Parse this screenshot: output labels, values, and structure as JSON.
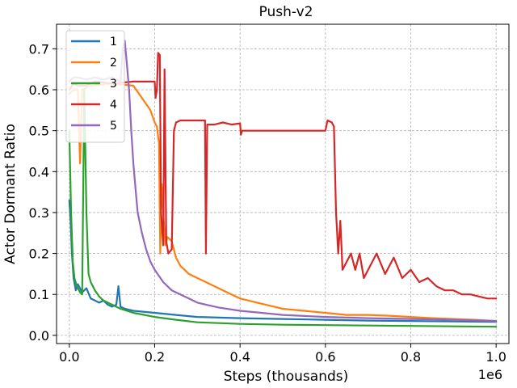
{
  "chart_data": {
    "type": "line",
    "title": "Push-v2",
    "xlabel": "Steps (thousands)",
    "ylabel": "Actor Dormant Ratio",
    "x_offset_label": "1e6",
    "xlim": [
      -0.03,
      1.03
    ],
    "ylim": [
      -0.02,
      0.76
    ],
    "xticks": [
      0.0,
      0.2,
      0.4,
      0.6,
      0.8,
      1.0
    ],
    "xtick_labels": [
      "0.0",
      "0.2",
      "0.4",
      "0.6",
      "0.8",
      "1.0"
    ],
    "yticks": [
      0.0,
      0.1,
      0.2,
      0.3,
      0.4,
      0.5,
      0.6,
      0.7
    ],
    "ytick_labels": [
      "0.0",
      "0.1",
      "0.2",
      "0.3",
      "0.4",
      "0.5",
      "0.6",
      "0.7"
    ],
    "grid": true,
    "legend_position": "top-left",
    "series": [
      {
        "name": "1",
        "color": "#1f77b4",
        "points": [
          [
            0.0,
            0.33
          ],
          [
            0.003,
            0.28
          ],
          [
            0.006,
            0.2
          ],
          [
            0.01,
            0.14
          ],
          [
            0.015,
            0.11
          ],
          [
            0.02,
            0.125
          ],
          [
            0.03,
            0.105
          ],
          [
            0.04,
            0.115
          ],
          [
            0.05,
            0.09
          ],
          [
            0.06,
            0.085
          ],
          [
            0.07,
            0.08
          ],
          [
            0.08,
            0.085
          ],
          [
            0.09,
            0.075
          ],
          [
            0.1,
            0.07
          ],
          [
            0.11,
            0.075
          ],
          [
            0.115,
            0.12
          ],
          [
            0.12,
            0.07
          ],
          [
            0.13,
            0.065
          ],
          [
            0.15,
            0.06
          ],
          [
            0.2,
            0.055
          ],
          [
            0.25,
            0.05
          ],
          [
            0.3,
            0.045
          ],
          [
            0.4,
            0.042
          ],
          [
            0.5,
            0.04
          ],
          [
            0.6,
            0.038
          ],
          [
            0.7,
            0.036
          ],
          [
            0.8,
            0.035
          ],
          [
            0.9,
            0.034
          ],
          [
            1.0,
            0.033
          ]
        ]
      },
      {
        "name": "2",
        "color": "#ff7f0e",
        "points": [
          [
            0.0,
            0.59
          ],
          [
            0.01,
            0.6
          ],
          [
            0.02,
            0.6
          ],
          [
            0.025,
            0.42
          ],
          [
            0.03,
            0.6
          ],
          [
            0.05,
            0.61
          ],
          [
            0.1,
            0.615
          ],
          [
            0.15,
            0.61
          ],
          [
            0.19,
            0.55
          ],
          [
            0.2,
            0.52
          ],
          [
            0.205,
            0.51
          ],
          [
            0.21,
            0.47
          ],
          [
            0.213,
            0.2
          ],
          [
            0.216,
            0.37
          ],
          [
            0.22,
            0.3
          ],
          [
            0.225,
            0.22
          ],
          [
            0.23,
            0.24
          ],
          [
            0.24,
            0.23
          ],
          [
            0.25,
            0.19
          ],
          [
            0.26,
            0.17
          ],
          [
            0.27,
            0.16
          ],
          [
            0.28,
            0.15
          ],
          [
            0.3,
            0.14
          ],
          [
            0.32,
            0.13
          ],
          [
            0.34,
            0.12
          ],
          [
            0.36,
            0.11
          ],
          [
            0.38,
            0.1
          ],
          [
            0.4,
            0.09
          ],
          [
            0.42,
            0.085
          ],
          [
            0.44,
            0.08
          ],
          [
            0.46,
            0.075
          ],
          [
            0.48,
            0.07
          ],
          [
            0.5,
            0.065
          ],
          [
            0.55,
            0.06
          ],
          [
            0.6,
            0.055
          ],
          [
            0.65,
            0.05
          ],
          [
            0.7,
            0.05
          ],
          [
            0.75,
            0.048
          ],
          [
            0.8,
            0.045
          ],
          [
            0.85,
            0.042
          ],
          [
            0.9,
            0.04
          ],
          [
            0.95,
            0.038
          ],
          [
            1.0,
            0.035
          ]
        ]
      },
      {
        "name": "3",
        "color": "#2ca02c",
        "points": [
          [
            0.0,
            0.5
          ],
          [
            0.004,
            0.3
          ],
          [
            0.008,
            0.18
          ],
          [
            0.012,
            0.14
          ],
          [
            0.016,
            0.125
          ],
          [
            0.02,
            0.115
          ],
          [
            0.025,
            0.105
          ],
          [
            0.03,
            0.1
          ],
          [
            0.035,
            0.6
          ],
          [
            0.04,
            0.3
          ],
          [
            0.045,
            0.15
          ],
          [
            0.05,
            0.13
          ],
          [
            0.06,
            0.11
          ],
          [
            0.07,
            0.095
          ],
          [
            0.08,
            0.085
          ],
          [
            0.1,
            0.075
          ],
          [
            0.12,
            0.065
          ],
          [
            0.15,
            0.055
          ],
          [
            0.2,
            0.045
          ],
          [
            0.25,
            0.038
          ],
          [
            0.3,
            0.032
          ],
          [
            0.35,
            0.03
          ],
          [
            0.4,
            0.028
          ],
          [
            0.5,
            0.026
          ],
          [
            0.6,
            0.025
          ],
          [
            0.7,
            0.024
          ],
          [
            0.8,
            0.023
          ],
          [
            0.9,
            0.022
          ],
          [
            1.0,
            0.021
          ]
        ]
      },
      {
        "name": "4",
        "color": "#d62728",
        "points": [
          [
            0.0,
            0.6
          ],
          [
            0.01,
            0.615
          ],
          [
            0.02,
            0.61
          ],
          [
            0.04,
            0.61
          ],
          [
            0.06,
            0.62
          ],
          [
            0.1,
            0.615
          ],
          [
            0.15,
            0.62
          ],
          [
            0.2,
            0.62
          ],
          [
            0.202,
            0.58
          ],
          [
            0.205,
            0.6
          ],
          [
            0.208,
            0.69
          ],
          [
            0.212,
            0.685
          ],
          [
            0.215,
            0.3
          ],
          [
            0.22,
            0.22
          ],
          [
            0.223,
            0.65
          ],
          [
            0.227,
            0.23
          ],
          [
            0.232,
            0.2
          ],
          [
            0.24,
            0.21
          ],
          [
            0.245,
            0.5
          ],
          [
            0.25,
            0.52
          ],
          [
            0.26,
            0.525
          ],
          [
            0.3,
            0.525
          ],
          [
            0.318,
            0.525
          ],
          [
            0.32,
            0.2
          ],
          [
            0.323,
            0.515
          ],
          [
            0.34,
            0.515
          ],
          [
            0.36,
            0.52
          ],
          [
            0.38,
            0.515
          ],
          [
            0.4,
            0.518
          ],
          [
            0.402,
            0.49
          ],
          [
            0.405,
            0.5
          ],
          [
            0.43,
            0.5
          ],
          [
            0.45,
            0.5
          ],
          [
            0.5,
            0.5
          ],
          [
            0.55,
            0.5
          ],
          [
            0.6,
            0.5
          ],
          [
            0.605,
            0.525
          ],
          [
            0.615,
            0.52
          ],
          [
            0.62,
            0.51
          ],
          [
            0.625,
            0.3
          ],
          [
            0.63,
            0.2
          ],
          [
            0.635,
            0.28
          ],
          [
            0.64,
            0.16
          ],
          [
            0.65,
            0.18
          ],
          [
            0.66,
            0.2
          ],
          [
            0.67,
            0.16
          ],
          [
            0.68,
            0.2
          ],
          [
            0.69,
            0.14
          ],
          [
            0.7,
            0.16
          ],
          [
            0.72,
            0.2
          ],
          [
            0.74,
            0.15
          ],
          [
            0.76,
            0.19
          ],
          [
            0.78,
            0.14
          ],
          [
            0.8,
            0.16
          ],
          [
            0.82,
            0.13
          ],
          [
            0.84,
            0.14
          ],
          [
            0.86,
            0.12
          ],
          [
            0.88,
            0.11
          ],
          [
            0.9,
            0.11
          ],
          [
            0.92,
            0.1
          ],
          [
            0.94,
            0.1
          ],
          [
            0.96,
            0.095
          ],
          [
            0.98,
            0.09
          ],
          [
            1.0,
            0.09
          ]
        ]
      },
      {
        "name": "5",
        "color": "#9467bd",
        "points": [
          [
            0.0,
            0.62
          ],
          [
            0.01,
            0.63
          ],
          [
            0.02,
            0.63
          ],
          [
            0.04,
            0.625
          ],
          [
            0.06,
            0.63
          ],
          [
            0.08,
            0.625
          ],
          [
            0.1,
            0.63
          ],
          [
            0.12,
            0.62
          ],
          [
            0.125,
            0.7
          ],
          [
            0.13,
            0.72
          ],
          [
            0.135,
            0.66
          ],
          [
            0.14,
            0.6
          ],
          [
            0.145,
            0.5
          ],
          [
            0.15,
            0.42
          ],
          [
            0.155,
            0.36
          ],
          [
            0.16,
            0.3
          ],
          [
            0.17,
            0.25
          ],
          [
            0.18,
            0.21
          ],
          [
            0.19,
            0.18
          ],
          [
            0.2,
            0.16
          ],
          [
            0.22,
            0.13
          ],
          [
            0.24,
            0.11
          ],
          [
            0.26,
            0.1
          ],
          [
            0.28,
            0.09
          ],
          [
            0.3,
            0.08
          ],
          [
            0.32,
            0.075
          ],
          [
            0.35,
            0.068
          ],
          [
            0.4,
            0.06
          ],
          [
            0.45,
            0.055
          ],
          [
            0.5,
            0.05
          ],
          [
            0.6,
            0.045
          ],
          [
            0.7,
            0.042
          ],
          [
            0.8,
            0.04
          ],
          [
            0.9,
            0.038
          ],
          [
            1.0,
            0.035
          ]
        ]
      }
    ]
  }
}
